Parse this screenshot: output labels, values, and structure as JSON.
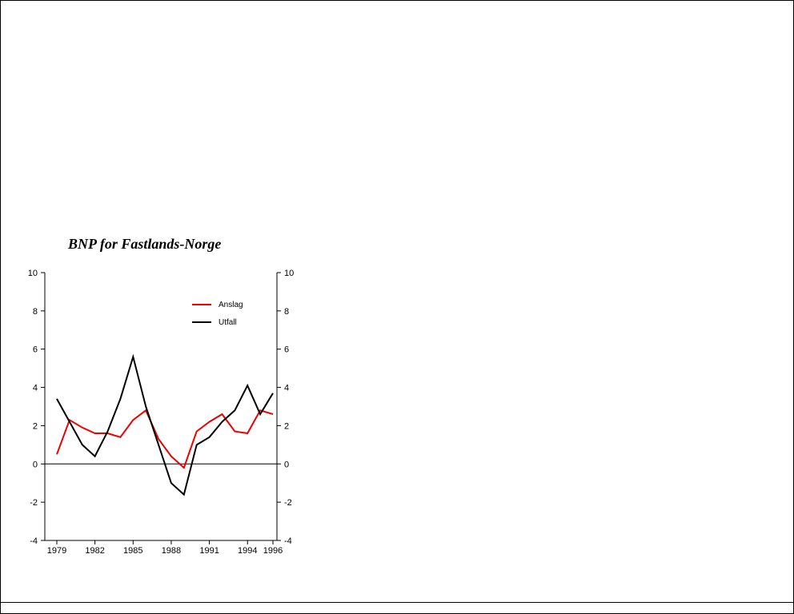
{
  "chart": {
    "title": "BNP for Fastlands-Norge"
  },
  "chart_data": {
    "type": "line",
    "title": "BNP for Fastlands-Norge",
    "x": [
      1979,
      1980,
      1981,
      1982,
      1983,
      1984,
      1985,
      1986,
      1987,
      1988,
      1989,
      1990,
      1991,
      1992,
      1993,
      1994,
      1995,
      1996
    ],
    "series": [
      {
        "name": "Anslag",
        "color": "#ee0000",
        "values": [
          0.5,
          2.3,
          1.9,
          1.6,
          1.6,
          1.4,
          2.3,
          2.8,
          1.3,
          0.4,
          -0.2,
          1.7,
          2.2,
          2.6,
          1.7,
          1.6,
          2.8,
          2.6
        ]
      },
      {
        "name": "Utfall",
        "color": "#000000",
        "values": [
          3.4,
          2.2,
          1.0,
          0.4,
          1.7,
          3.4,
          5.6,
          3.0,
          1.0,
          -1.0,
          -1.6,
          1.0,
          1.4,
          2.2,
          2.8,
          4.1,
          2.6,
          3.7
        ]
      }
    ],
    "xlabel": "",
    "ylabel": "",
    "ylim": [
      -4,
      10
    ],
    "yticks": [
      -4,
      -2,
      0,
      2,
      4,
      6,
      8,
      10
    ],
    "xticks": [
      1979,
      1982,
      1985,
      1988,
      1991,
      1994,
      1996
    ],
    "grid": false,
    "zero_line": true,
    "y_axis_sides": "both",
    "legend_position": "top-inside"
  }
}
